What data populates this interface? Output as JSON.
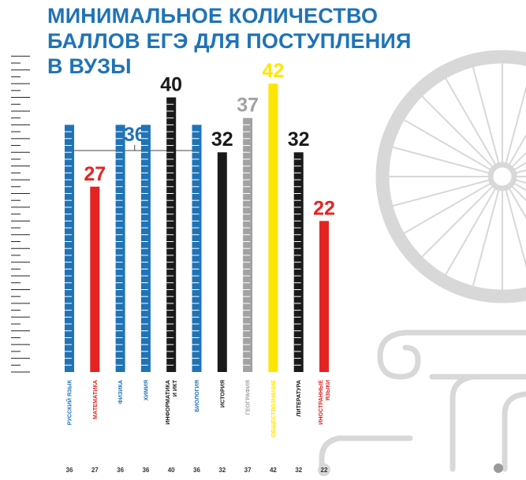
{
  "title_lines": [
    "МИНИМАЛЬНОЕ КОЛИЧЕСТВО",
    "БАЛЛОВ ЕГЭ ДЛЯ ПОСТУПЛЕНИЯ",
    "В ВУЗЫ"
  ],
  "colors": {
    "blue": "#1f73b7",
    "red": "#e52322",
    "black": "#1a1a1a",
    "gray": "#a2a2a2",
    "yellow": "#ffe600",
    "deco": "#d8d8d8",
    "title": "#1f73b7"
  },
  "chart_data": {
    "type": "bar",
    "title": "МИНИМАЛЬНОЕ КОЛИЧЕСТВО БАЛЛОВ ЕГЭ ДЛЯ ПОСТУПЛЕНИЯ В ВУЗЫ",
    "xlabel": "",
    "ylabel": "",
    "ylim": [
      0,
      45
    ],
    "group_label": "36",
    "bars": [
      {
        "label": "РУССКИЙ ЯЗЫК",
        "value": 36,
        "color": "blue",
        "style": "segmented",
        "show_top": false
      },
      {
        "label": "МАТЕМАТИКА",
        "value": 27,
        "color": "red",
        "style": "solid",
        "show_top": true
      },
      {
        "label": "ФИЗИКА",
        "value": 36,
        "color": "blue",
        "style": "segmented",
        "show_top": false
      },
      {
        "label": "ХИМИЯ",
        "value": 36,
        "color": "blue",
        "style": "segmented",
        "show_top": false
      },
      {
        "label": "ИНФОРМАТИКА\nИ ИКТ",
        "value": 40,
        "color": "black",
        "style": "segmented",
        "show_top": true
      },
      {
        "label": "БИОЛОГИЯ",
        "value": 36,
        "color": "blue",
        "style": "segmented",
        "show_top": false
      },
      {
        "label": "ИСТОРИЯ",
        "value": 32,
        "color": "black",
        "style": "solid",
        "show_top": true
      },
      {
        "label": "ГЕОГРАФИЯ",
        "value": 37,
        "color": "gray",
        "style": "segmented",
        "show_top": true
      },
      {
        "label": "ОБЩЕСТВОЗНАНИЕ",
        "value": 42,
        "color": "yellow",
        "style": "solid",
        "show_top": true
      },
      {
        "label": "ЛИТЕРАТУРА",
        "value": 32,
        "color": "black",
        "style": "segmented",
        "show_top": true
      },
      {
        "label": "ИНОСТРАННЫЕ\nЯЗЫКИ",
        "value": 22,
        "color": "red",
        "style": "solid",
        "show_top": true
      }
    ]
  }
}
